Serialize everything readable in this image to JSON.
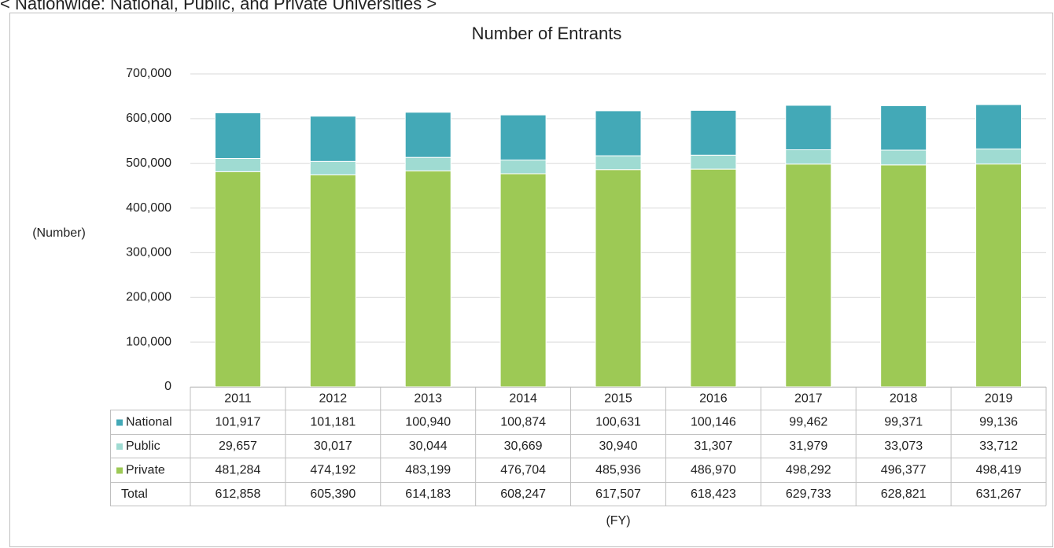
{
  "heading": "< Nationwide: National, Public, and Private Universities >",
  "chart_data": {
    "type": "bar",
    "stacked": true,
    "title": "Number of Entrants",
    "y_label": "(Number)",
    "x_label": "(FY)",
    "categories": [
      "2011",
      "2012",
      "2013",
      "2014",
      "2015",
      "2016",
      "2017",
      "2018",
      "2019"
    ],
    "series": [
      {
        "name": "National",
        "color": "#43a9b7",
        "values": [
          101917,
          101181,
          100940,
          100874,
          100631,
          100146,
          99462,
          99371,
          99136
        ],
        "value_labels": [
          "101,917",
          "101,181",
          "100,940",
          "100,874",
          "100,631",
          "100,146",
          "99,462",
          "99,371",
          "99,136"
        ]
      },
      {
        "name": "Public",
        "color": "#9fdbd2",
        "values": [
          29657,
          30017,
          30044,
          30669,
          30940,
          31307,
          31979,
          33073,
          33712
        ],
        "value_labels": [
          "29,657",
          "30,017",
          "30,044",
          "30,669",
          "30,940",
          "31,307",
          "31,979",
          "33,073",
          "33,712"
        ]
      },
      {
        "name": "Private",
        "color": "#9dc955",
        "values": [
          481284,
          474192,
          483199,
          476704,
          485936,
          486970,
          498292,
          496377,
          498419
        ],
        "value_labels": [
          "481,284",
          "474,192",
          "483,199",
          "476,704",
          "485,936",
          "486,970",
          "498,292",
          "496,377",
          "498,419"
        ]
      }
    ],
    "totals": {
      "name": "Total",
      "values": [
        612858,
        605390,
        614183,
        608247,
        617507,
        618423,
        629733,
        628821,
        631267
      ],
      "value_labels": [
        "612,858",
        "605,390",
        "614,183",
        "608,247",
        "617,507",
        "618,423",
        "629,733",
        "628,821",
        "631,267"
      ]
    },
    "ylim": [
      0,
      700000
    ],
    "yticks": [
      0,
      {
        "value": 100000,
        "label": "100,000"
      },
      {
        "value": 200000,
        "label": "200,000"
      },
      {
        "value": 300000,
        "label": "300,000"
      },
      {
        "value": 400000,
        "label": "400,000"
      },
      {
        "value": 500000,
        "label": "500,000"
      },
      {
        "value": 600000,
        "label": "600,000"
      },
      {
        "value": 700000,
        "label": "700,000"
      }
    ],
    "grid": true,
    "legend": "table"
  }
}
